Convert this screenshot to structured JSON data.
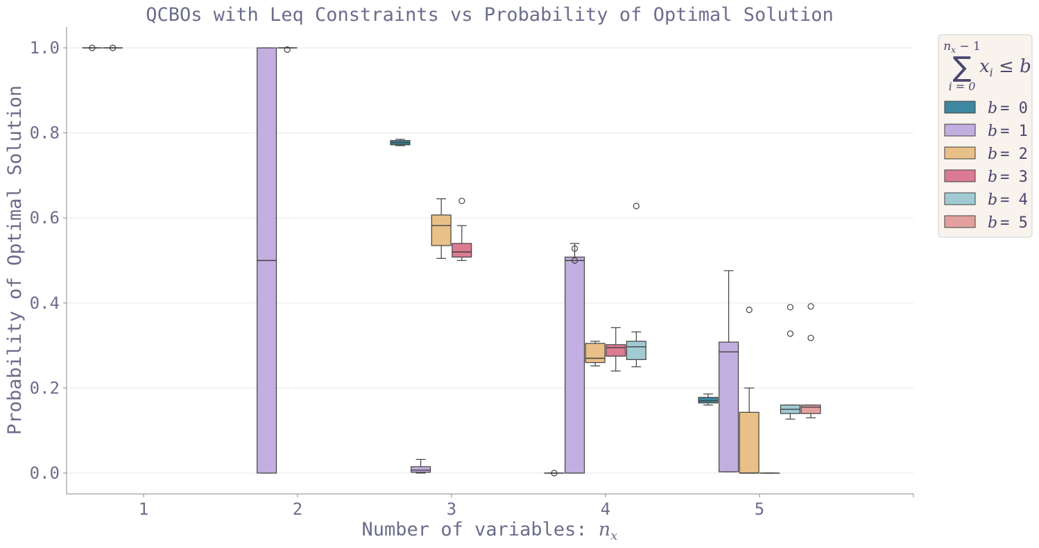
{
  "chart_data": {
    "type": "box",
    "title": "QCBOs with Leq Constraints vs Probability of Optimal Solution",
    "xlabel": "Number of variables: ",
    "xlabel_math": "n",
    "xlabel_math_sub": "x",
    "ylabel": "Probability of Optimal Solution",
    "ylim": [
      -0.05,
      1.05
    ],
    "y_ticks": [
      "0.0",
      "0.2",
      "0.4",
      "0.6",
      "0.8",
      "1.0"
    ],
    "categories": [
      "1",
      "2",
      "3",
      "4",
      "5"
    ],
    "grid": "horizontal",
    "legend": {
      "placement": "outside-top-right",
      "title": {
        "sum_top_n": "n",
        "sum_top_sub": "x",
        "sum_top_rest": " − 1",
        "sum_symbol": "∑",
        "sum_bottom": "i = 0",
        "body_x": "x",
        "body_sub": "i",
        "body_rest": " ≤ b"
      },
      "entries": [
        {
          "var": "b",
          "eq": "= 0"
        },
        {
          "var": "b",
          "eq": "= 1"
        },
        {
          "var": "b",
          "eq": "= 2"
        },
        {
          "var": "b",
          "eq": "= 3"
        },
        {
          "var": "b",
          "eq": "= 4"
        },
        {
          "var": "b",
          "eq": "= 5"
        }
      ]
    },
    "series": [
      {
        "color": "#3d87a0",
        "boxes": [
          {
            "cat": "1",
            "min": 1.0,
            "q1": 1.0,
            "median": 1.0,
            "q3": 1.0,
            "max": 1.0,
            "outliers": [
              1.0
            ]
          },
          null,
          {
            "cat": "3",
            "min": 0.77,
            "q1": 0.772,
            "median": 0.777,
            "q3": 0.782,
            "max": 0.785,
            "outliers": []
          },
          {
            "cat": "4",
            "min": 0.0,
            "q1": 0.0,
            "median": 0.0,
            "q3": 0.0,
            "max": 0.0,
            "outliers": [
              0.0
            ]
          },
          {
            "cat": "5",
            "min": 0.16,
            "q1": 0.165,
            "median": 0.17,
            "q3": 0.178,
            "max": 0.186,
            "outliers": []
          }
        ]
      },
      {
        "color": "#c3aee0",
        "boxes": [
          {
            "cat": "1",
            "min": 1.0,
            "q1": 1.0,
            "median": 1.0,
            "q3": 1.0,
            "max": 1.0,
            "outliers": [
              1.0
            ]
          },
          {
            "cat": "2",
            "min": 0.0,
            "q1": 0.0,
            "median": 0.5,
            "q3": 1.0,
            "max": 1.0,
            "outliers": []
          },
          {
            "cat": "3",
            "min": 0.0,
            "q1": 0.002,
            "median": 0.007,
            "q3": 0.015,
            "max": 0.032,
            "outliers": []
          },
          {
            "cat": "4",
            "min": 0.0,
            "q1": 0.0,
            "median": 0.5,
            "q3": 0.508,
            "max": 0.54,
            "outliers": [
              0.5,
              0.528
            ]
          },
          {
            "cat": "5",
            "min": 0.003,
            "q1": 0.003,
            "median": 0.285,
            "q3": 0.308,
            "max": 0.476,
            "outliers": []
          }
        ]
      },
      {
        "color": "#e8c088",
        "boxes": [
          null,
          {
            "cat": "2",
            "min": 1.0,
            "q1": 1.0,
            "median": 1.0,
            "q3": 1.0,
            "max": 1.0,
            "outliers": [
              0.996
            ]
          },
          {
            "cat": "3",
            "min": 0.505,
            "q1": 0.535,
            "median": 0.582,
            "q3": 0.607,
            "max": 0.645,
            "outliers": []
          },
          {
            "cat": "4",
            "min": 0.252,
            "q1": 0.26,
            "median": 0.27,
            "q3": 0.305,
            "max": 0.31,
            "outliers": []
          },
          {
            "cat": "5",
            "min": 0.0,
            "q1": 0.0,
            "median": 0.0,
            "q3": 0.143,
            "max": 0.2,
            "outliers": [
              0.384
            ]
          }
        ]
      },
      {
        "color": "#db7b92",
        "boxes": [
          null,
          null,
          {
            "cat": "3",
            "min": 0.5,
            "q1": 0.508,
            "median": 0.52,
            "q3": 0.54,
            "max": 0.582,
            "outliers": [
              0.64
            ]
          },
          {
            "cat": "4",
            "min": 0.24,
            "q1": 0.275,
            "median": 0.295,
            "q3": 0.302,
            "max": 0.342,
            "outliers": []
          },
          {
            "cat": "5",
            "min": 0.0,
            "q1": 0.0,
            "median": 0.0,
            "q3": 0.0,
            "max": 0.0,
            "outliers": []
          }
        ]
      },
      {
        "color": "#a1cbd4",
        "boxes": [
          null,
          null,
          null,
          {
            "cat": "4",
            "min": 0.25,
            "q1": 0.267,
            "median": 0.297,
            "q3": 0.31,
            "max": 0.332,
            "outliers": [
              0.628
            ]
          },
          {
            "cat": "5",
            "min": 0.127,
            "q1": 0.14,
            "median": 0.15,
            "q3": 0.16,
            "max": 0.16,
            "outliers": [
              0.328,
              0.39
            ]
          }
        ]
      },
      {
        "color": "#e2a19f",
        "boxes": [
          null,
          null,
          null,
          null,
          {
            "cat": "5",
            "min": 0.13,
            "q1": 0.14,
            "median": 0.155,
            "q3": 0.16,
            "max": 0.16,
            "outliers": [
              0.318,
              0.392
            ]
          }
        ]
      }
    ]
  }
}
